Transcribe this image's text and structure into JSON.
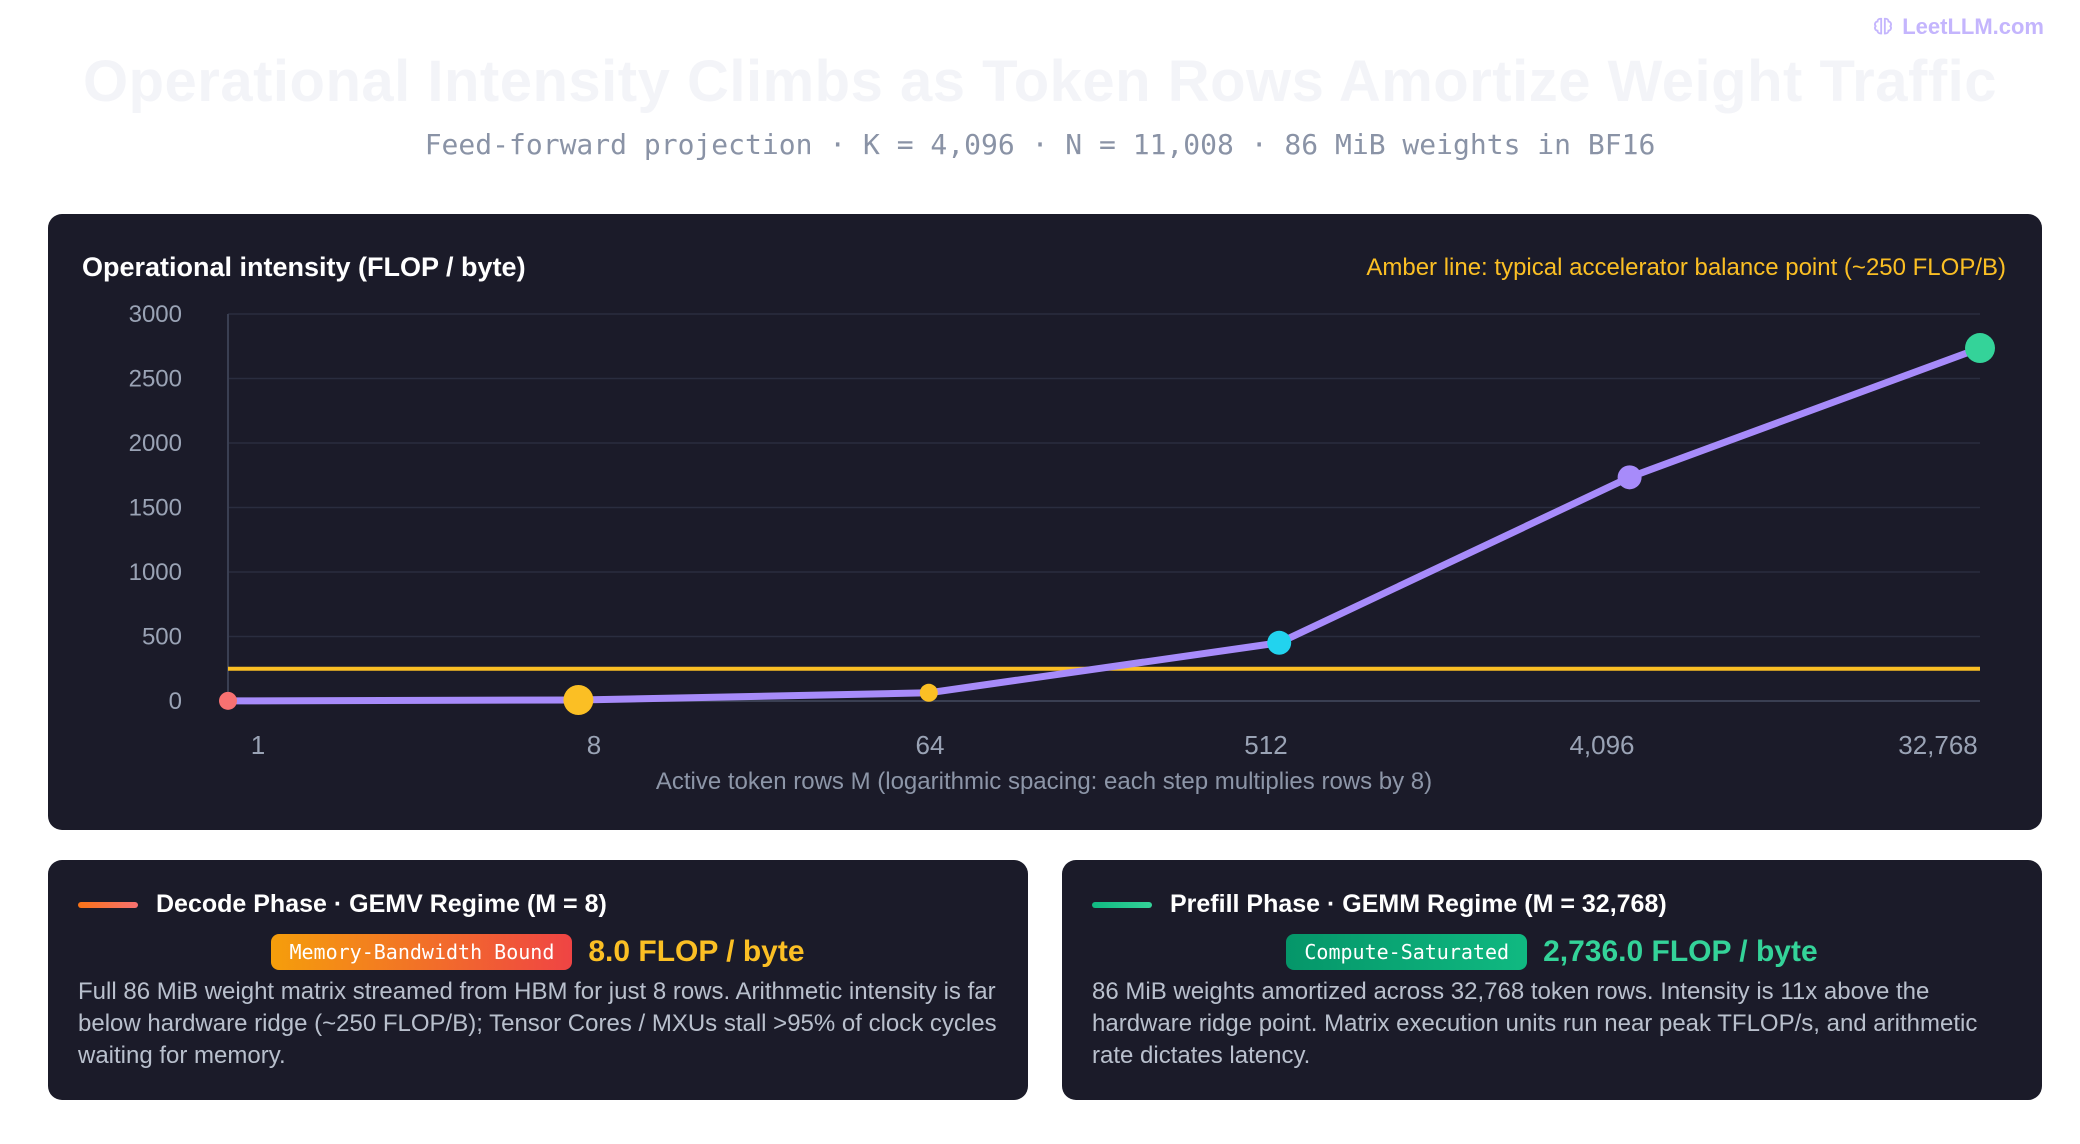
{
  "brand": {
    "label": "LeetLLM.com",
    "icon": "brain-icon"
  },
  "header": {
    "title": "Operational Intensity Climbs as Token Rows Amortize Weight Traffic",
    "subtitle": "Feed-forward projection · K = 4,096 · N = 11,008 · 86 MiB weights in BF16"
  },
  "chart_data": {
    "type": "line",
    "title": "Operational intensity (FLOP / byte)",
    "annotation": "Amber line: typical accelerator balance point (~250 FLOP/B)",
    "xlabel": "Active token rows M (logarithmic spacing: each step multiplies rows by 8)",
    "ylabel": "Operational intensity (FLOP / byte)",
    "x_scale": "log8",
    "categories": [
      "1",
      "8",
      "64",
      "512",
      "4,096",
      "32,768"
    ],
    "x": [
      1,
      8,
      64,
      512,
      4096,
      32768
    ],
    "series": [
      {
        "values": [
          1.0,
          8.0,
          63.6,
          451.3,
          1734.0,
          2736.0
        ],
        "color": "#a78bfa"
      }
    ],
    "markers": [
      {
        "x": 1,
        "y": 1.0,
        "color": "#f87171",
        "size": "small"
      },
      {
        "x": 8,
        "y": 8.0,
        "color": "#fbbf24",
        "size": "large"
      },
      {
        "x": 64,
        "y": 63.6,
        "color": "#fbbf24",
        "size": "small"
      },
      {
        "x": 512,
        "y": 451.3,
        "color": "#22d3ee",
        "size": "medium"
      },
      {
        "x": 4096,
        "y": 1734.0,
        "color": "#a78bfa",
        "size": "medium"
      },
      {
        "x": 32768,
        "y": 2736.0,
        "color": "#34d399",
        "size": "large"
      }
    ],
    "reference_line": {
      "y": 250,
      "color": "#fbbf24"
    },
    "yticks": [
      0,
      500,
      1000,
      1500,
      2000,
      2500,
      3000
    ],
    "ylim": [
      0,
      3000
    ],
    "grid": true,
    "legend": "none"
  },
  "phases": {
    "decode": {
      "title": "Decode Phase · GEMV Regime (M = 8)",
      "badge": "Memory-Bandwidth Bound",
      "value": "8.0 FLOP / byte",
      "body": "Full 86 MiB weight matrix streamed from HBM for just 8 rows. Arithmetic intensity is far below hardware ridge (~250 FLOP/B); Tensor Cores / MXUs stall >95% of clock cycles waiting for memory.",
      "accent": "#fbbf24"
    },
    "prefill": {
      "title": "Prefill Phase · GEMM Regime (M = 32,768)",
      "badge": "Compute-Saturated",
      "value": "2,736.0 FLOP / byte",
      "body": "86 MiB weights amortized across 32,768 token rows. Intensity is 11x above the hardware ridge point. Matrix execution units run near peak TFLOP/s, and arithmetic rate dictates latency.",
      "accent": "#34d399"
    }
  }
}
